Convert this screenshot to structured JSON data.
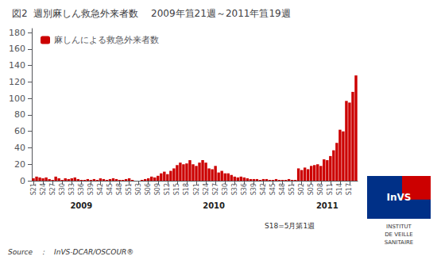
{
  "chart_data": {
    "type": "bar",
    "title": "図2  週別麻しん救急外来者数　 2009年笡21週～2011年笡19週",
    "legend_label": "麻しんによる救急外来者数",
    "legend": "upper left",
    "color": "#CC0000",
    "grid": false,
    "ylim": [
      0,
      185
    ],
    "yticks": [
      0,
      20,
      40,
      60,
      80,
      100,
      120,
      140,
      160,
      180
    ],
    "categories": [
      "S21",
      null,
      null,
      "S24",
      null,
      null,
      "S27",
      null,
      null,
      "S30",
      null,
      null,
      "S33",
      null,
      null,
      "S36",
      null,
      null,
      "S39",
      null,
      null,
      "S42",
      null,
      null,
      "S45",
      null,
      null,
      "S48",
      null,
      null,
      "S51",
      null,
      null,
      "S03",
      null,
      null,
      "S06",
      null,
      null,
      "S09",
      null,
      null,
      "S12",
      null,
      null,
      "S15",
      null,
      null,
      "S18",
      null,
      null,
      "S21",
      null,
      null,
      "S24",
      null,
      null,
      "S27",
      null,
      null,
      "S30",
      null,
      null,
      "S33",
      null,
      null,
      "S36",
      null,
      null,
      "S39",
      null,
      null,
      "S42",
      null,
      null,
      "S45",
      null,
      null,
      "S48",
      null,
      null,
      "S51",
      null,
      null,
      "S02",
      null,
      null,
      "S05",
      null,
      null,
      "S08",
      null,
      null,
      "S11",
      null,
      null,
      "S14",
      null,
      null,
      "S17",
      null,
      null
    ],
    "values": [
      3,
      5,
      4,
      3,
      4,
      2,
      1,
      5,
      3,
      1,
      3,
      2,
      3,
      4,
      2,
      1,
      1,
      2,
      1,
      2,
      1,
      3,
      2,
      1,
      2,
      3,
      2,
      1,
      1,
      2,
      3,
      1,
      0,
      0,
      1,
      2,
      3,
      5,
      4,
      6,
      9,
      11,
      8,
      12,
      15,
      19,
      22,
      20,
      21,
      25,
      20,
      18,
      22,
      25,
      22,
      15,
      14,
      18,
      10,
      12,
      9,
      9,
      7,
      5,
      4,
      5,
      4,
      3,
      2,
      2,
      2,
      1,
      2,
      2,
      1,
      1,
      2,
      1,
      1,
      1,
      2,
      1,
      1,
      15,
      13,
      16,
      14,
      18,
      19,
      20,
      18,
      26,
      25,
      30,
      37,
      46,
      62,
      60,
      97,
      95,
      108,
      128
    ],
    "annotations": [
      {
        "text": "2009",
        "x": 15
      },
      {
        "text": "2010",
        "x": 56.5
      },
      {
        "text": "2011",
        "x": 92
      },
      {
        "text": "Source　：　InVS-DCAR/OSCOUR®"
      },
      {
        "text": "S18=5月第1週"
      },
      {
        "text": "InVS"
      },
      {
        "text": "INSTITUT"
      },
      {
        "text": "DE VEILLE"
      },
      {
        "text": "SANITAIRE"
      }
    ]
  }
}
